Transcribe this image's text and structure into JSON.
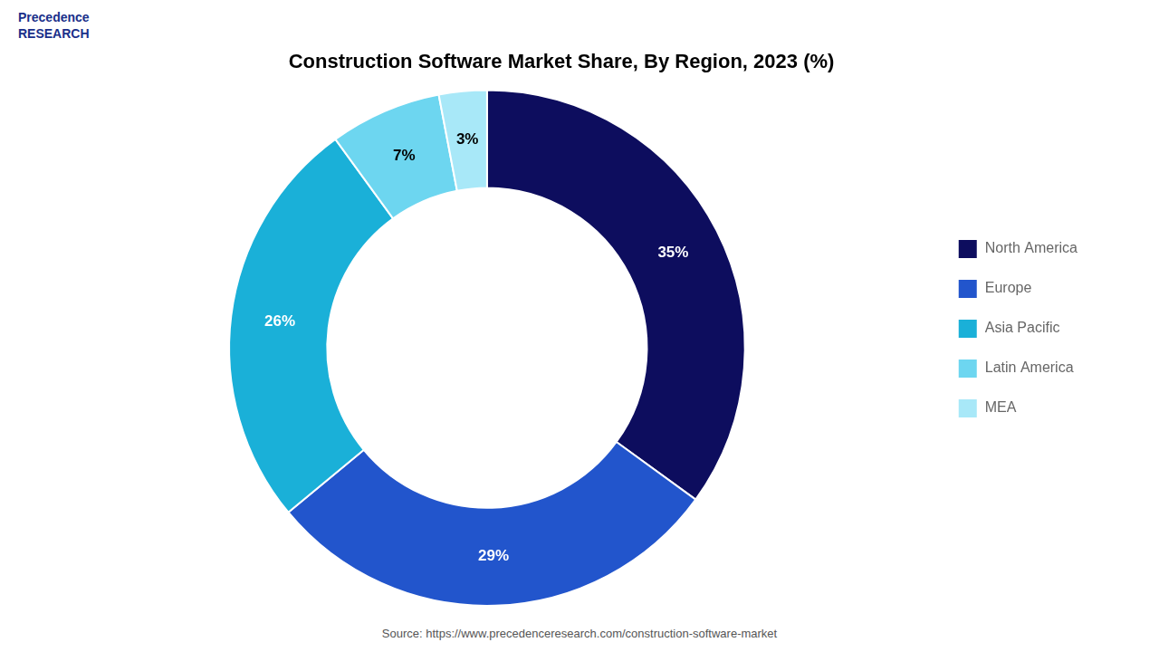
{
  "chart_data": {
    "type": "doughnut",
    "title": "Construction Software Market Share, By Region, 2023 (%)",
    "categories": [
      "North America",
      "Europe",
      "Asia Pacific",
      "Latin America",
      "MEA"
    ],
    "values": [
      35,
      29,
      26,
      7,
      3
    ],
    "value_labels": [
      "35%",
      "29%",
      "26%",
      "7%",
      "3%"
    ],
    "colors": [
      "#0d0d5e",
      "#2255cc",
      "#1ab0d8",
      "#6dd6f0",
      "#a8e8f8"
    ],
    "data_labels": true,
    "legend": "right",
    "annotations": [
      "Precedence\nRESEARCH",
      "Source: https://www.precedenceresearch.com/construction-software-market"
    ]
  }
}
